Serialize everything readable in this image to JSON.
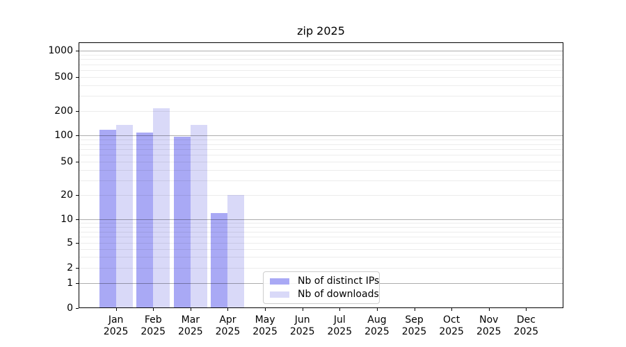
{
  "chart_data": {
    "type": "bar",
    "title": "zip 2025",
    "categories": [
      {
        "month": "Jan",
        "year": "2025"
      },
      {
        "month": "Feb",
        "year": "2025"
      },
      {
        "month": "Mar",
        "year": "2025"
      },
      {
        "month": "Apr",
        "year": "2025"
      },
      {
        "month": "May",
        "year": "2025"
      },
      {
        "month": "Jun",
        "year": "2025"
      },
      {
        "month": "Jul",
        "year": "2025"
      },
      {
        "month": "Aug",
        "year": "2025"
      },
      {
        "month": "Sep",
        "year": "2025"
      },
      {
        "month": "Oct",
        "year": "2025"
      },
      {
        "month": "Nov",
        "year": "2025"
      },
      {
        "month": "Dec",
        "year": "2025"
      }
    ],
    "series": [
      {
        "name": "Nb of distinct IPs",
        "color": "#a9a9f5",
        "values": [
          118,
          108,
          97,
          12,
          0,
          0,
          0,
          0,
          0,
          0,
          0,
          0
        ]
      },
      {
        "name": "Nb of downloads",
        "color": "#d9d9f8",
        "values": [
          135,
          215,
          135,
          20,
          0,
          0,
          0,
          0,
          0,
          0,
          0,
          0
        ]
      }
    ],
    "y_axis": {
      "scale": "symlog",
      "ticks": [
        0,
        1,
        2,
        5,
        10,
        20,
        50,
        100,
        200,
        500,
        1000
      ],
      "range": [
        0,
        1000
      ]
    },
    "grid": {
      "orientation": "horizontal",
      "major_ticks": [
        1,
        10,
        100,
        1000
      ],
      "minor_color": "#ececec",
      "major_color": "#aeaeae"
    },
    "legend_position": "inside-bottom-center"
  }
}
